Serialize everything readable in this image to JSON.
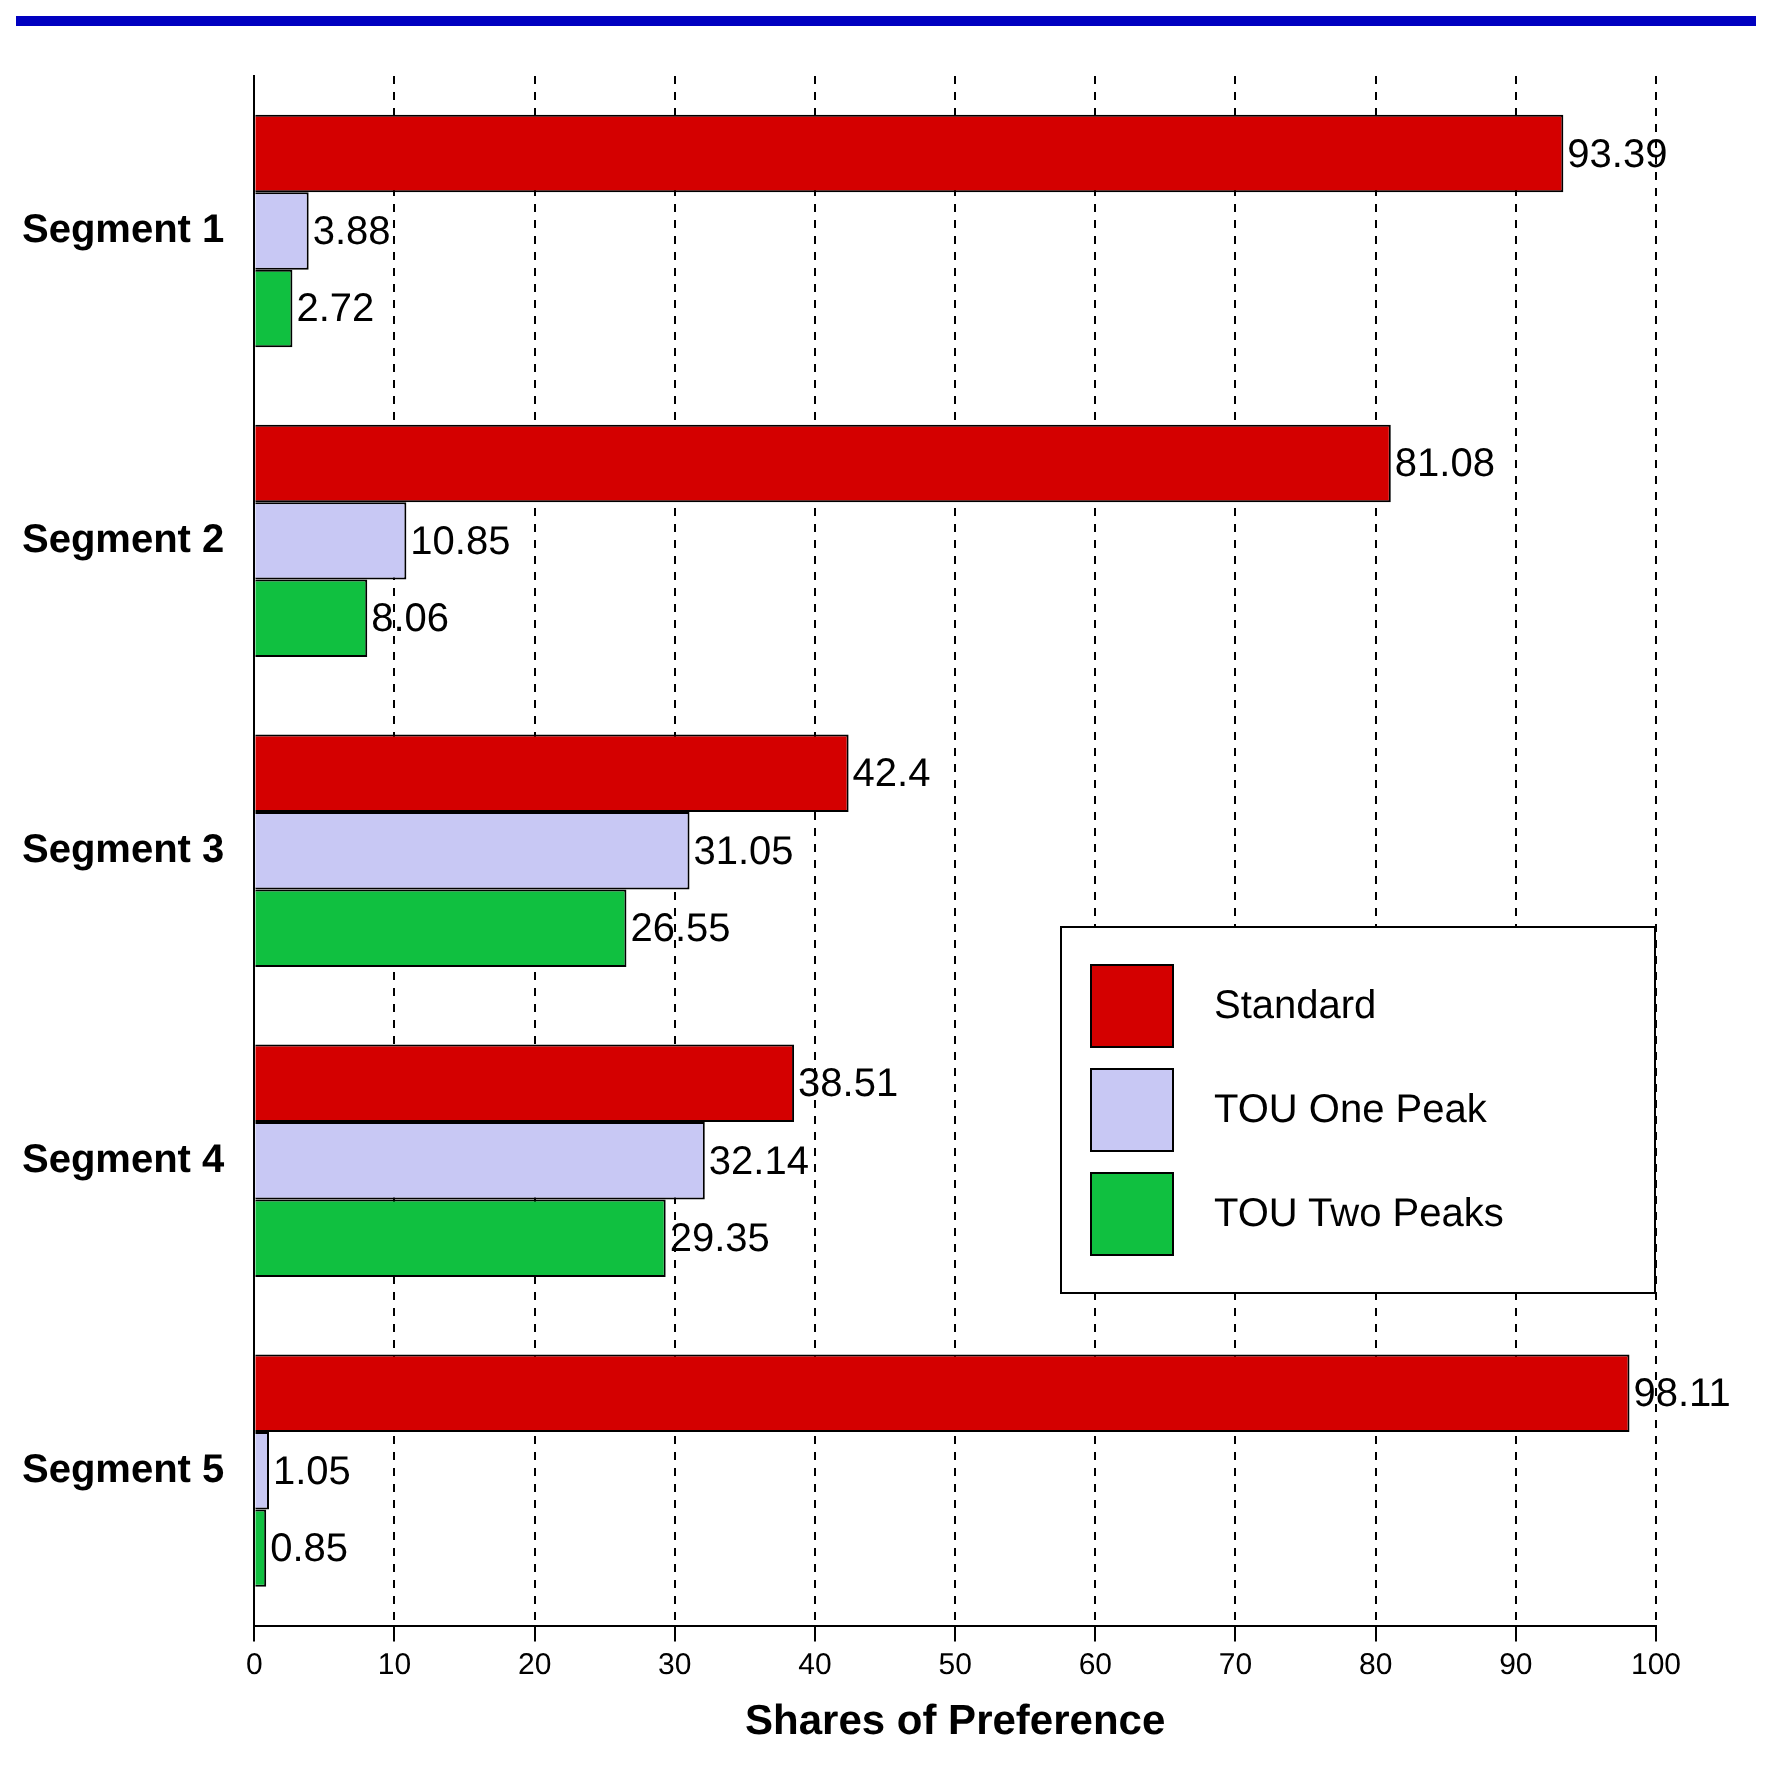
{
  "chart_data": {
    "type": "bar",
    "orientation": "horizontal",
    "xlabel": "Shares of Preference",
    "categories": [
      "Segment 1",
      "Segment 2",
      "Segment 3",
      "Segment 4",
      "Segment 5"
    ],
    "series": [
      {
        "name": "Standard",
        "color": "#d40000",
        "values": [
          93.39,
          81.08,
          42.4,
          38.51,
          98.11
        ]
      },
      {
        "name": "TOU One Peak",
        "color": "#c8c8f4",
        "values": [
          3.88,
          10.85,
          31.05,
          32.14,
          1.05
        ]
      },
      {
        "name": "TOU Two Peaks",
        "color": "#10c040",
        "values": [
          2.72,
          8.06,
          26.55,
          29.35,
          0.85
        ]
      }
    ],
    "xlim": [
      0,
      100
    ],
    "xticks": [
      0,
      10,
      20,
      30,
      40,
      50,
      60,
      70,
      80,
      90,
      100
    ],
    "grid": "x",
    "legend": "right",
    "data_labels": true
  }
}
